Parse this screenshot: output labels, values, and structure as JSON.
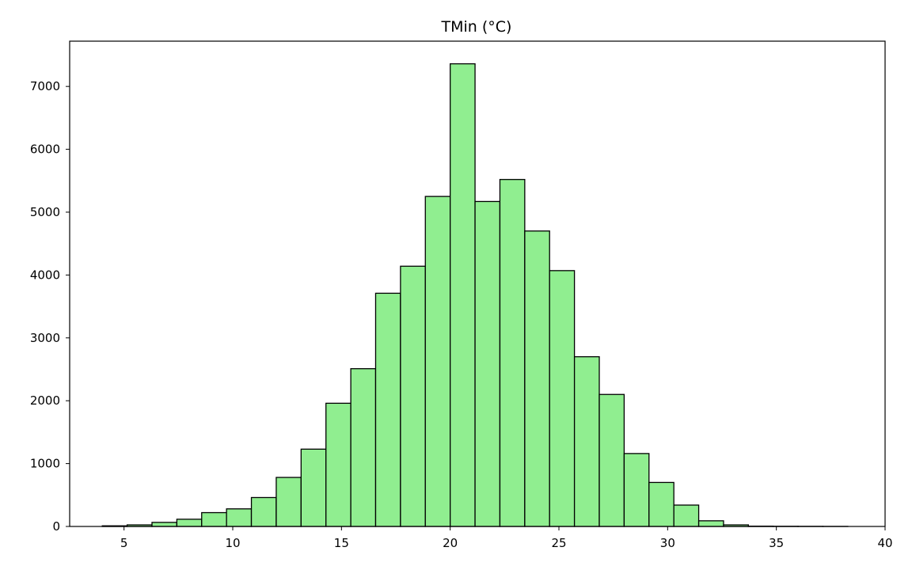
{
  "chart_data": {
    "type": "bar",
    "title": "TMin (°C)",
    "xlabel": "",
    "ylabel": "",
    "xlim": [
      2.5,
      40
    ],
    "ylim": [
      0,
      7720
    ],
    "x_ticks": [
      5,
      10,
      15,
      20,
      25,
      30,
      35,
      40
    ],
    "y_ticks": [
      0,
      1000,
      2000,
      3000,
      4000,
      5000,
      6000,
      7000
    ],
    "bin_edges": [
      4.0,
      5.143,
      6.286,
      7.429,
      8.571,
      9.714,
      10.857,
      12.0,
      13.143,
      14.286,
      15.429,
      16.571,
      17.714,
      18.857,
      20.0,
      21.143,
      22.286,
      23.429,
      24.571,
      25.714,
      26.857,
      28.0,
      29.143,
      30.286,
      31.429,
      32.571,
      33.714,
      34.857,
      36.0,
      37.143,
      38.286
    ],
    "values": [
      10,
      25,
      65,
      115,
      220,
      280,
      460,
      780,
      1230,
      1960,
      2510,
      3710,
      4140,
      5250,
      7360,
      5170,
      5520,
      4700,
      4070,
      2700,
      2100,
      1160,
      700,
      340,
      90,
      25,
      5,
      3,
      2,
      1
    ],
    "bar_color": "#90ee90",
    "edge_color": "#000000",
    "grid": false,
    "legend": "none"
  }
}
